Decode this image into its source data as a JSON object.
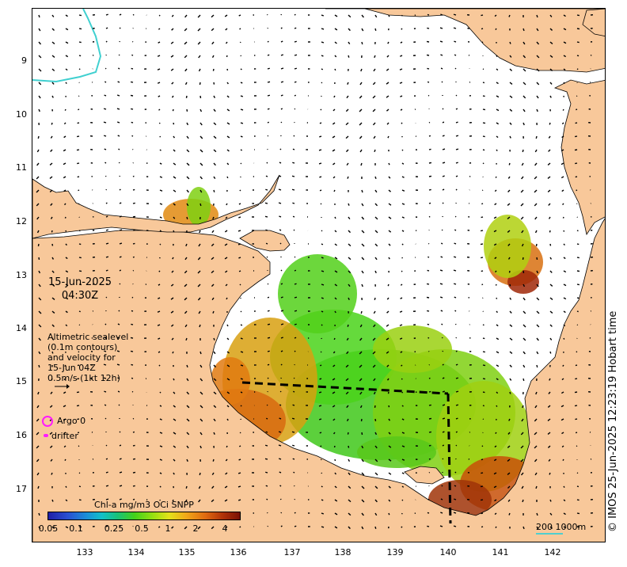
{
  "map": {
    "date": "15-Jun-2025",
    "time": "04:30Z",
    "y_axis_labels": [
      "9",
      "10",
      "11",
      "12",
      "13",
      "14",
      "15",
      "16",
      "17"
    ],
    "x_axis_labels": [
      "133",
      "134",
      "135",
      "136",
      "137",
      "138",
      "139",
      "140",
      "141",
      "142"
    ],
    "credit": "© IMOS 25-Jun-2025 12:23:19 Hobart time"
  },
  "legend": {
    "altimetric_lines": [
      "Altimetric sealevel",
      "(0.1m contours)",
      "and velocity for",
      "15-Jun 04Z",
      "0.5m/s (1kt 12h)"
    ],
    "argo_label": "Argo 0",
    "drifter_label": "drifter"
  },
  "colorbar": {
    "title": "Chl-a mg/m3 OCi SNPP",
    "ticks": [
      "0.05",
      "0.1",
      "0.25",
      "0.5",
      "1",
      "2",
      "4"
    ]
  },
  "scale": {
    "text": "200  1000m"
  },
  "colors": {
    "land": "#f8c89a",
    "coast": "#000000",
    "contour": "#40d0d0",
    "marker": "#ff1aff"
  }
}
